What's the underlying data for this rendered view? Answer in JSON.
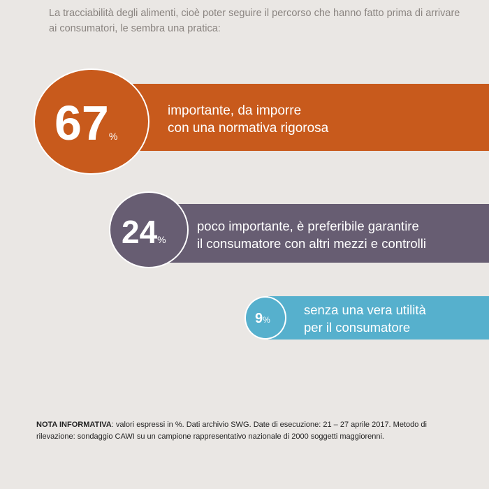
{
  "question": "La tracciabilità degli alimenti, cioè poter seguire il percorso che hanno fatto prima di arrivare ai consumatori, le sembra una pratica:",
  "unit_symbol": "%",
  "chart_data": {
    "type": "bar",
    "categories": [
      "importante, da imporre con una normativa rigorosa",
      "poco importante, è preferibile garantire il consumatore con altri mezzi e controlli",
      "senza una vera utilità per il consumatore"
    ],
    "values": [
      67,
      24,
      9
    ],
    "colors": [
      "#c85a1c",
      "#675d72",
      "#56b0cd"
    ]
  },
  "items": [
    {
      "value": "67",
      "line1": "importante, da imporre",
      "line2": "con una normativa rigorosa",
      "color": "#c85a1c"
    },
    {
      "value": "24",
      "line1": "poco importante, è preferibile garantire",
      "line2": "il consumatore con altri mezzi e controlli",
      "color": "#675d72"
    },
    {
      "value": "9",
      "line1": "senza una vera utilità",
      "line2": "per il consumatore",
      "color": "#56b0cd"
    }
  ],
  "note": {
    "label": "NOTA INFORMATIVA",
    "text": ": valori espressi in %. Dati archivio SWG. Date di esecuzione: 21 – 27 aprile 2017. Metodo di rilevazione: sondaggio CAWI su un campione rappresentativo nazionale di 2000 soggetti maggiorenni."
  }
}
